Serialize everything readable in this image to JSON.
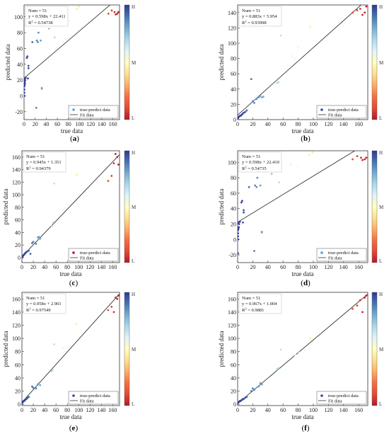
{
  "colorbar": {
    "high_label": "H",
    "mid_label": "M",
    "low_label": "L",
    "colors": [
      "#b2182b",
      "#e34a33",
      "#f46d43",
      "#fdae61",
      "#fee090",
      "#ffffbf",
      "#e0f3f8",
      "#abd9e9",
      "#74add1",
      "#4575b4",
      "#313695"
    ]
  },
  "colors": {
    "fit_line": "#333333",
    "legend_marker_light": "#4aa3df",
    "legend_marker_dark": "#2c4a9a",
    "legend_marker_red": "#b2182b"
  },
  "chart_data": [
    {
      "type": "scatter",
      "caption": {
        "open": "(",
        "letter": "a",
        "close": ")"
      },
      "xlabel": "true data",
      "ylabel": "predicted data",
      "xlim": [
        0,
        172
      ],
      "ylim": [
        -30,
        115
      ],
      "xticks": [
        "0",
        "20",
        "40",
        "60",
        "80",
        "100",
        "120",
        "140",
        "160"
      ],
      "yticks": [
        "-20",
        "0",
        "20",
        "40",
        "60",
        "80",
        "100"
      ],
      "info": {
        "num": "Num = 51",
        "equation": "y = 0.598x + 22.411",
        "r2_prefix": "R",
        "r2_exp": "2",
        "r2_value": " = 0.54738"
      },
      "legend": {
        "position": "bottom-right",
        "marker_color": "light",
        "series_label": "true-predict data",
        "fit_label": "Fit data"
      },
      "fit": {
        "slope": 0.598,
        "intercept": 22.411
      },
      "points": [
        [
          0.5,
          0
        ],
        [
          0.5,
          4
        ],
        [
          0.5,
          8
        ],
        [
          0.5,
          12
        ],
        [
          1,
          14
        ],
        [
          1,
          18
        ],
        [
          1.5,
          16
        ],
        [
          2,
          20
        ],
        [
          1,
          22
        ],
        [
          3,
          23
        ],
        [
          5,
          48
        ],
        [
          6,
          50
        ],
        [
          8,
          38
        ],
        [
          8,
          35
        ],
        [
          7,
          22
        ],
        [
          15,
          68
        ],
        [
          22,
          -15
        ],
        [
          23,
          70
        ],
        [
          25,
          68
        ],
        [
          26,
          80
        ],
        [
          30,
          70
        ],
        [
          32,
          10
        ],
        [
          32,
          9
        ],
        [
          45,
          85
        ],
        [
          52,
          90
        ],
        [
          53,
          92
        ],
        [
          55,
          74
        ],
        [
          70,
          97
        ],
        [
          77,
          72
        ],
        [
          80,
          95
        ],
        [
          95,
          110
        ],
        [
          99,
          113
        ],
        [
          152,
          104
        ],
        [
          158,
          108
        ],
        [
          163,
          106
        ],
        [
          165,
          103
        ],
        [
          168,
          104
        ],
        [
          170,
          106
        ]
      ]
    },
    {
      "type": "scatter",
      "caption": {
        "open": "(",
        "letter": "b",
        "close": ")"
      },
      "xlabel": "true data",
      "ylabel": "predicted data",
      "xlim": [
        0,
        172
      ],
      "ylim": [
        0,
        150
      ],
      "xticks": [
        "0",
        "20",
        "40",
        "60",
        "80",
        "100",
        "120",
        "140",
        "160"
      ],
      "yticks": [
        "0",
        "20",
        "40",
        "60",
        "80",
        "100",
        "120",
        "140"
      ],
      "info": {
        "num": "Num = 51",
        "equation": "y = 0.883x + 5.954",
        "r2_prefix": "R",
        "r2_exp": "2",
        "r2_value": " = 0.93998"
      },
      "legend": {
        "position": "bottom-right",
        "marker_color": "dark",
        "series_label": "true-predict data",
        "fit_label": "Fit data"
      },
      "fit": {
        "slope": 0.883,
        "intercept": 5.954
      },
      "points": [
        [
          0.5,
          2
        ],
        [
          1,
          3
        ],
        [
          2,
          4
        ],
        [
          3,
          5
        ],
        [
          4,
          5
        ],
        [
          5,
          6
        ],
        [
          6,
          7
        ],
        [
          7,
          8
        ],
        [
          8,
          9
        ],
        [
          10,
          10
        ],
        [
          12,
          12
        ],
        [
          18,
          53
        ],
        [
          20,
          24
        ],
        [
          22,
          22
        ],
        [
          25,
          27
        ],
        [
          28,
          29
        ],
        [
          30,
          31
        ],
        [
          32,
          29
        ],
        [
          34,
          30
        ],
        [
          52,
          48
        ],
        [
          54,
          49
        ],
        [
          57,
          110
        ],
        [
          72,
          83
        ],
        [
          76,
          80
        ],
        [
          80,
          95
        ],
        [
          96,
          121
        ],
        [
          152,
          140
        ],
        [
          158,
          143
        ],
        [
          162,
          145
        ],
        [
          165,
          137
        ],
        [
          168,
          140
        ],
        [
          170,
          148
        ]
      ]
    },
    {
      "type": "scatter",
      "caption": {
        "open": "(",
        "letter": "c",
        "close": ")"
      },
      "xlabel": "true data",
      "ylabel": "predicted data",
      "xlim": [
        0,
        172
      ],
      "ylim": [
        -8,
        170
      ],
      "xticks": [
        "0",
        "20",
        "40",
        "60",
        "80",
        "100",
        "120",
        "140",
        "160"
      ],
      "yticks": [
        "0",
        "20",
        "40",
        "60",
        "80",
        "100",
        "120",
        "140",
        "160"
      ],
      "info": {
        "num": "Num = 51",
        "equation": "y = 0.945x + 1.351",
        "r2_prefix": "R",
        "r2_exp": "2",
        "r2_value": " = 0.94379"
      },
      "legend": {
        "position": "bottom-right",
        "marker_color": "red",
        "series_label": "true-predict data",
        "fit_label": "Fit data"
      },
      "fit": {
        "slope": 0.945,
        "intercept": 1.351
      },
      "points": [
        [
          0.5,
          0
        ],
        [
          1,
          2
        ],
        [
          2,
          3
        ],
        [
          3,
          4
        ],
        [
          4,
          5
        ],
        [
          5,
          6
        ],
        [
          6,
          7
        ],
        [
          7,
          8
        ],
        [
          8,
          9
        ],
        [
          10,
          10
        ],
        [
          12,
          11
        ],
        [
          15,
          6
        ],
        [
          18,
          23
        ],
        [
          20,
          25
        ],
        [
          25,
          22
        ],
        [
          28,
          32
        ],
        [
          30,
          33
        ],
        [
          32,
          30
        ],
        [
          53,
          50
        ],
        [
          55,
          56
        ],
        [
          57,
          118
        ],
        [
          73,
          75
        ],
        [
          76,
          78
        ],
        [
          80,
          85
        ],
        [
          97,
          132
        ],
        [
          152,
          122
        ],
        [
          158,
          130
        ],
        [
          162,
          150
        ],
        [
          165,
          165
        ],
        [
          168,
          160
        ],
        [
          170,
          148
        ]
      ]
    },
    {
      "type": "scatter",
      "caption": {
        "open": "(",
        "letter": "d",
        "close": ")"
      },
      "xlabel": "true data",
      "ylabel": "predicted data",
      "xlim": [
        0,
        172
      ],
      "ylim": [
        -30,
        115
      ],
      "xticks": [
        "0",
        "20",
        "40",
        "60",
        "80",
        "100",
        "120",
        "140",
        "160"
      ],
      "yticks": [
        "-20",
        "0",
        "20",
        "40",
        "60",
        "80",
        "100"
      ],
      "info": {
        "num": "Num = 51",
        "equation": "y = 0.598x + 22.410",
        "r2_prefix": "R",
        "r2_exp": "2",
        "r2_value": " = 0.54735"
      },
      "legend": {
        "position": "bottom-right",
        "marker_color": "light",
        "series_label": "true-predict data",
        "fit_label": "Fit data"
      },
      "fit": {
        "slope": 0.598,
        "intercept": 22.41
      },
      "points": [
        [
          0.5,
          -18
        ],
        [
          0.5,
          0
        ],
        [
          0.5,
          4
        ],
        [
          0.5,
          8
        ],
        [
          0.5,
          12
        ],
        [
          1,
          14
        ],
        [
          1.5,
          16
        ],
        [
          2,
          20
        ],
        [
          1,
          22
        ],
        [
          3,
          23
        ],
        [
          5,
          48
        ],
        [
          6,
          50
        ],
        [
          8,
          38
        ],
        [
          8,
          35
        ],
        [
          7,
          22
        ],
        [
          15,
          68
        ],
        [
          22,
          -15
        ],
        [
          23,
          70
        ],
        [
          25,
          68
        ],
        [
          26,
          80
        ],
        [
          30,
          70
        ],
        [
          32,
          10
        ],
        [
          32,
          9
        ],
        [
          45,
          85
        ],
        [
          52,
          90
        ],
        [
          53,
          92
        ],
        [
          55,
          74
        ],
        [
          70,
          97
        ],
        [
          77,
          72
        ],
        [
          80,
          95
        ],
        [
          95,
          110
        ],
        [
          99,
          113
        ],
        [
          152,
          104
        ],
        [
          158,
          108
        ],
        [
          163,
          106
        ],
        [
          165,
          103
        ],
        [
          168,
          104
        ],
        [
          170,
          106
        ]
      ]
    },
    {
      "type": "scatter",
      "caption": {
        "open": "(",
        "letter": "e",
        "close": ")"
      },
      "xlabel": "true data",
      "ylabel": "predicted data",
      "xlim": [
        0,
        172
      ],
      "ylim": [
        -2,
        170
      ],
      "xticks": [
        "0",
        "20",
        "40",
        "60",
        "80",
        "100",
        "120",
        "140",
        "160"
      ],
      "yticks": [
        "0",
        "20",
        "40",
        "60",
        "80",
        "100",
        "120",
        "140",
        "160"
      ],
      "info": {
        "num": "Num = 51",
        "equation": "y = 0.958x + 2.901",
        "r2_prefix": "R",
        "r2_exp": "2",
        "r2_value": " = 0.97549"
      },
      "legend": {
        "position": "bottom-right",
        "marker_color": "dark",
        "series_label": "true-predict data",
        "fit_label": "Fit data"
      },
      "fit": {
        "slope": 0.958,
        "intercept": 2.901
      },
      "points": [
        [
          0.5,
          2
        ],
        [
          1,
          3
        ],
        [
          2,
          4
        ],
        [
          3,
          5
        ],
        [
          4,
          5
        ],
        [
          5,
          6
        ],
        [
          6,
          7
        ],
        [
          7,
          8
        ],
        [
          8,
          8
        ],
        [
          10,
          10
        ],
        [
          12,
          11
        ],
        [
          18,
          27
        ],
        [
          20,
          25
        ],
        [
          25,
          24
        ],
        [
          28,
          30
        ],
        [
          30,
          32
        ],
        [
          32,
          29
        ],
        [
          52,
          50
        ],
        [
          54,
          52
        ],
        [
          57,
          91
        ],
        [
          73,
          85
        ],
        [
          76,
          80
        ],
        [
          80,
          85
        ],
        [
          96,
          122
        ],
        [
          152,
          143
        ],
        [
          158,
          148
        ],
        [
          162,
          140
        ],
        [
          165,
          162
        ],
        [
          168,
          160
        ],
        [
          170,
          165
        ]
      ]
    },
    {
      "type": "scatter",
      "caption": {
        "open": "(",
        "letter": "f",
        "close": ")"
      },
      "xlabel": "true data",
      "ylabel": "predicted data",
      "xlim": [
        0,
        172
      ],
      "ylim": [
        -2,
        170
      ],
      "xticks": [
        "0",
        "20",
        "40",
        "60",
        "80",
        "100",
        "120",
        "140",
        "160"
      ],
      "yticks": [
        "0",
        "20",
        "40",
        "60",
        "80",
        "100",
        "120",
        "140",
        "160"
      ],
      "info": {
        "num": "Num = 51",
        "equation": "y = 0.967x + 1.004",
        "r2_prefix": "R",
        "r2_exp": "2",
        "r2_value": " = 0.9881"
      },
      "legend": {
        "position": "bottom-right",
        "marker_color": "dark",
        "series_label": "true-predict data",
        "fit_label": "Fit data"
      },
      "fit": {
        "slope": 0.967,
        "intercept": 1.004
      },
      "points": [
        [
          0.5,
          2
        ],
        [
          1,
          3
        ],
        [
          2,
          4
        ],
        [
          3,
          5
        ],
        [
          4,
          5
        ],
        [
          5,
          6
        ],
        [
          6,
          7
        ],
        [
          7,
          8
        ],
        [
          8,
          8
        ],
        [
          10,
          10
        ],
        [
          12,
          11
        ],
        [
          18,
          20
        ],
        [
          20,
          24
        ],
        [
          22,
          22
        ],
        [
          28,
          27
        ],
        [
          30,
          32
        ],
        [
          32,
          30
        ],
        [
          52,
          53
        ],
        [
          54,
          55
        ],
        [
          57,
          83
        ],
        [
          73,
          74
        ],
        [
          76,
          75
        ],
        [
          80,
          80
        ],
        [
          96,
          100
        ],
        [
          152,
          145
        ],
        [
          158,
          150
        ],
        [
          162,
          158
        ],
        [
          165,
          140
        ],
        [
          168,
          162
        ],
        [
          170,
          165
        ]
      ]
    }
  ]
}
